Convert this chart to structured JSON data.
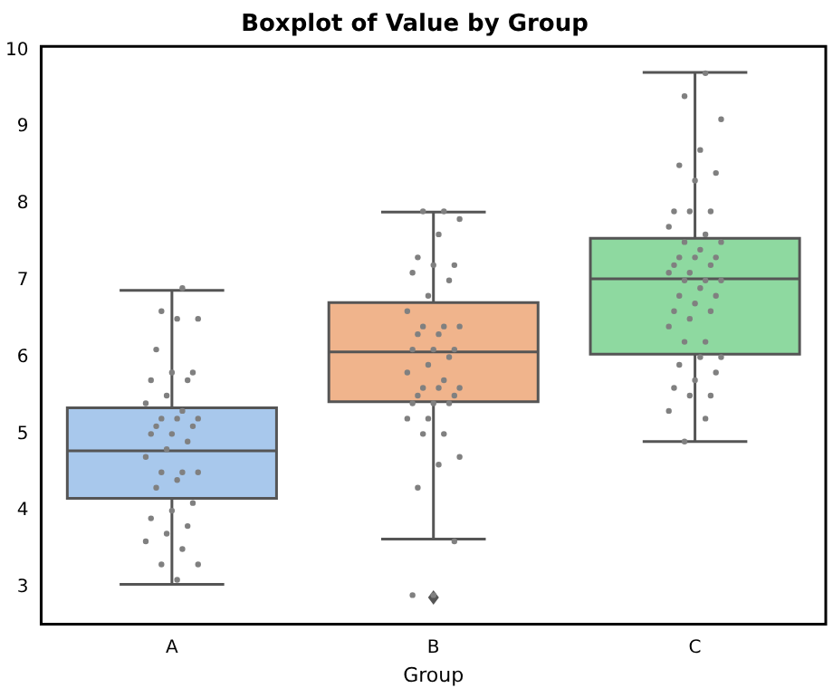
{
  "chart_data": {
    "type": "box",
    "title": "Boxplot of Value by Group",
    "xlabel": "Group",
    "categories": [
      "A",
      "B",
      "C"
    ],
    "colors": [
      "#a8c8ec",
      "#f0b48c",
      "#8ed9a0"
    ],
    "boxes": [
      {
        "low": 3.04,
        "q1": 4.16,
        "median": 4.78,
        "q3": 5.34,
        "high": 6.87
      },
      {
        "low": 3.63,
        "q1": 5.42,
        "median": 6.07,
        "q3": 6.71,
        "high": 7.89,
        "outliers": [
          2.87
        ]
      },
      {
        "low": 4.9,
        "q1": 6.04,
        "median": 7.02,
        "q3": 7.55,
        "high": 9.71
      }
    ],
    "series": [
      {
        "type": "scatter",
        "color": "#808080",
        "x": [
          "A",
          "A",
          "A",
          "A",
          "A",
          "A",
          "A",
          "A",
          "A",
          "A",
          "A",
          "A",
          "A",
          "A",
          "A",
          "A",
          "A",
          "A",
          "A",
          "A",
          "A",
          "A",
          "A",
          "A",
          "A",
          "A",
          "A",
          "A",
          "A",
          "A",
          "A",
          "A",
          "A",
          "A",
          "A",
          "A",
          "A",
          "B",
          "B",
          "B",
          "B",
          "B",
          "B",
          "B",
          "B",
          "B",
          "B",
          "B",
          "B",
          "B",
          "B",
          "B",
          "B",
          "B",
          "B",
          "B",
          "B",
          "B",
          "B",
          "B",
          "B",
          "B",
          "B",
          "B",
          "B",
          "B",
          "B",
          "B",
          "B",
          "B",
          "B",
          "B",
          "B",
          "B",
          "B",
          "B",
          "B",
          "B",
          "C",
          "C",
          "C",
          "C",
          "C",
          "C",
          "C",
          "C",
          "C",
          "C",
          "C",
          "C",
          "C",
          "C",
          "C",
          "C",
          "C",
          "C",
          "C",
          "C",
          "C",
          "C",
          "C",
          "C",
          "C",
          "C",
          "C",
          "C",
          "C",
          "C",
          "C",
          "C",
          "C",
          "C",
          "C",
          "C",
          "C",
          "C",
          "C",
          "C",
          "C",
          "C",
          "C",
          "C",
          "C",
          "C"
        ],
        "values": [
          6.9,
          6.6,
          6.5,
          6.5,
          6.1,
          5.8,
          5.8,
          5.7,
          5.7,
          5.5,
          5.4,
          5.3,
          5.2,
          5.2,
          5.2,
          5.1,
          5.1,
          5.0,
          5.0,
          4.9,
          4.8,
          4.7,
          4.5,
          4.5,
          4.5,
          4.4,
          4.3,
          4.1,
          4.0,
          3.9,
          3.8,
          3.7,
          3.6,
          3.5,
          3.3,
          3.3,
          3.1,
          7.9,
          7.9,
          7.8,
          7.6,
          7.3,
          7.2,
          7.2,
          7.1,
          7.0,
          6.8,
          6.6,
          6.4,
          6.4,
          6.4,
          6.3,
          6.3,
          6.1,
          6.1,
          6.1,
          6.0,
          5.9,
          5.8,
          5.7,
          5.6,
          5.6,
          5.6,
          5.5,
          5.5,
          5.4,
          5.4,
          5.4,
          5.2,
          5.2,
          5.0,
          5.0,
          4.7,
          4.6,
          4.3,
          3.6,
          2.9,
          2.9,
          9.7,
          9.4,
          9.1,
          8.7,
          8.5,
          8.4,
          8.3,
          7.9,
          7.9,
          7.9,
          7.7,
          7.6,
          7.5,
          7.5,
          7.4,
          7.3,
          7.3,
          7.3,
          7.2,
          7.2,
          7.1,
          7.1,
          7.0,
          7.0,
          7.0,
          6.9,
          6.8,
          6.8,
          6.7,
          6.6,
          6.6,
          6.5,
          6.4,
          6.2,
          6.2,
          6.0,
          6.0,
          5.9,
          5.8,
          5.7,
          5.6,
          5.5,
          5.5,
          5.3,
          5.2,
          4.9
        ]
      }
    ],
    "ylim": [
      2.52,
      10.05
    ],
    "yticks": [
      3,
      4,
      5,
      6,
      7,
      8,
      9,
      10
    ]
  }
}
